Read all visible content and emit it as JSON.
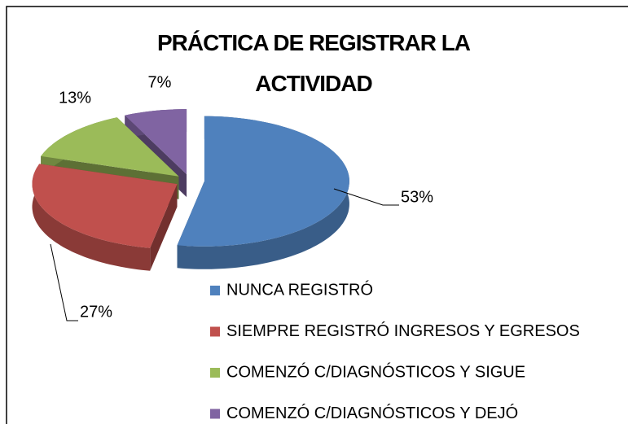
{
  "chart_data": {
    "type": "pie3d",
    "title": "PRÁCTICA DE REGISTRAR LA ACTIVIDAD",
    "categories": [
      "NUNCA REGISTRÓ",
      "SIEMPRE REGISTRÓ INGRESOS Y EGRESOS",
      "COMENZÓ C/DIAGNÓSTICOS Y SIGUE",
      "COMENZÓ C/DIAGNÓSTICOS Y DEJÓ"
    ],
    "values": [
      53,
      27,
      13,
      7
    ],
    "value_labels": [
      "53%",
      "27%",
      "13%",
      "7%"
    ],
    "colors": [
      "#4f81bd",
      "#c0504d",
      "#9bbb59",
      "#8064a2"
    ],
    "legend": "right"
  }
}
